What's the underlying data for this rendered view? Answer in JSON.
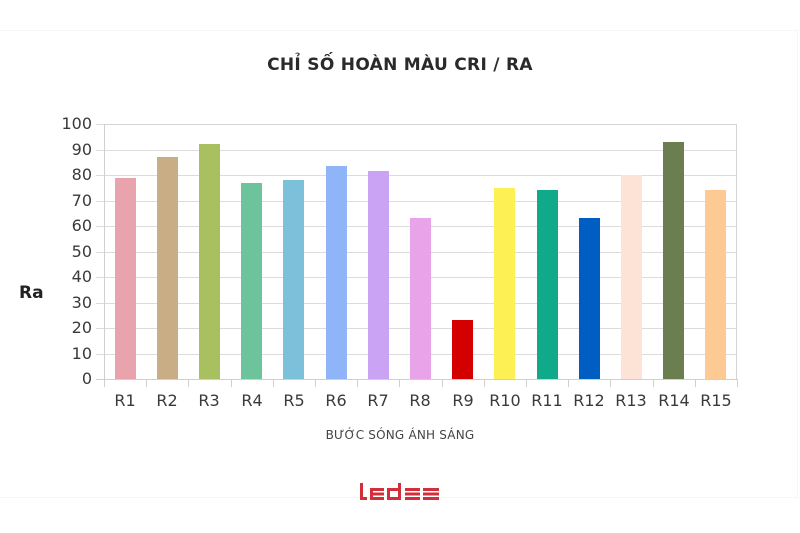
{
  "chart_data": {
    "type": "bar",
    "title": "CHỈ SỐ HOÀN MÀU CRI / RA",
    "xlabel": "BƯỚC SÓNG ÁNH SÁNG",
    "ylabel": "Ra",
    "ylim": [
      0,
      100
    ],
    "yticks": [
      0,
      10,
      20,
      30,
      40,
      50,
      60,
      70,
      80,
      90,
      100
    ],
    "grid": true,
    "legend": null,
    "categories": [
      "R1",
      "R2",
      "R3",
      "R4",
      "R5",
      "R6",
      "R7",
      "R8",
      "R9",
      "R10",
      "R11",
      "R12",
      "R13",
      "R14",
      "R15"
    ],
    "values": [
      79,
      87,
      92,
      77,
      78,
      83.5,
      81.5,
      63,
      23,
      75,
      74,
      63,
      80,
      93,
      74
    ],
    "colors": [
      "#e8a3ad",
      "#c9ad85",
      "#a8c060",
      "#6cc39c",
      "#7cc0da",
      "#8fb4f7",
      "#cba3f5",
      "#e9a3e8",
      "#d40000",
      "#fdf055",
      "#10a98a",
      "#005ec2",
      "#fde3d6",
      "#6b7e4f",
      "#fdca94"
    ]
  },
  "logo": {
    "text": "ledee",
    "color": "#d32f3a"
  }
}
